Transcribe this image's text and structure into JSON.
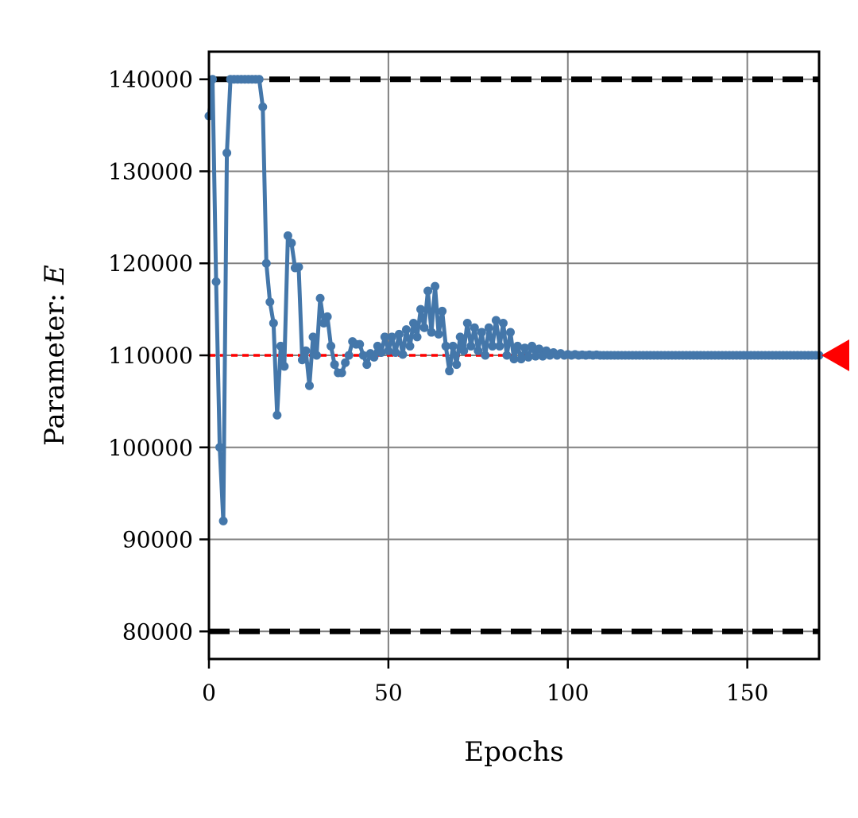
{
  "chart_data": {
    "type": "line",
    "xlabel": "Epochs",
    "ylabel_prefix": "Parameter: ",
    "ylabel_symbol": "E",
    "xlim": [
      0,
      170
    ],
    "ylim": [
      77000,
      143000
    ],
    "grid": true,
    "x_ticks": [
      0,
      50,
      100,
      150
    ],
    "y_ticks": [
      80000,
      90000,
      100000,
      110000,
      120000,
      130000,
      140000
    ],
    "reference_lines": [
      {
        "kind": "upper-bound",
        "value": 140000,
        "style": "dashed",
        "color": "#000000"
      },
      {
        "kind": "lower-bound",
        "value": 80000,
        "style": "dashed",
        "color": "#000000"
      },
      {
        "kind": "target",
        "value": 110000,
        "style": "dotted",
        "color": "#ff0000"
      }
    ],
    "target_marker": {
      "value": 110000,
      "shape": "left-pointing-triangle",
      "color": "#ff0000"
    },
    "series": [
      {
        "color": "#4477aa",
        "x": [
          0,
          1,
          2,
          3,
          4,
          5,
          6,
          7,
          8,
          9,
          10,
          11,
          12,
          13,
          14,
          15,
          16,
          17,
          18,
          19,
          20,
          21,
          22,
          23,
          24,
          25,
          26,
          27,
          28,
          29,
          30,
          31,
          32,
          33,
          34,
          35,
          36,
          37,
          38,
          39,
          40,
          41,
          42,
          43,
          44,
          45,
          46,
          47,
          48,
          49,
          50,
          51,
          52,
          53,
          54,
          55,
          56,
          57,
          58,
          59,
          60,
          61,
          62,
          63,
          64,
          65,
          66,
          67,
          68,
          69,
          70,
          71,
          72,
          73,
          74,
          75,
          76,
          77,
          78,
          79,
          80,
          81,
          82,
          83,
          84,
          85,
          86,
          87,
          88,
          89,
          90,
          91,
          92,
          93,
          94,
          95,
          96,
          97,
          98,
          99,
          100,
          101,
          102,
          103,
          104,
          105,
          106,
          107,
          108,
          109,
          110,
          111,
          112,
          113,
          114,
          115,
          116,
          117,
          118,
          119,
          120,
          121,
          122,
          123,
          124,
          125,
          126,
          127,
          128,
          129,
          130,
          131,
          132,
          133,
          134,
          135,
          136,
          137,
          138,
          139,
          140,
          141,
          142,
          143,
          144,
          145,
          146,
          147,
          148,
          149,
          150,
          151,
          152,
          153,
          154,
          155,
          156,
          157,
          158,
          159,
          160,
          161,
          162,
          163,
          164,
          165,
          166,
          167,
          168,
          169,
          170
        ],
        "y": [
          136000,
          140000,
          118000,
          100000,
          92000,
          132000,
          140000,
          140000,
          140000,
          140000,
          140000,
          140000,
          140000,
          140000,
          140000,
          137000,
          120000,
          115800,
          113500,
          103500,
          111000,
          108800,
          123000,
          122200,
          119500,
          119600,
          109500,
          110500,
          106700,
          112000,
          110000,
          116200,
          113500,
          114200,
          111000,
          109000,
          108100,
          108100,
          109200,
          110000,
          111500,
          111200,
          111200,
          110000,
          109000,
          110200,
          109800,
          111000,
          110300,
          112000,
          110500,
          112000,
          110300,
          112300,
          110100,
          112800,
          111000,
          113500,
          112000,
          115000,
          113000,
          117000,
          112500,
          117500,
          112300,
          114800,
          111000,
          108300,
          111000,
          109000,
          112000,
          110500,
          113500,
          111000,
          113000,
          110500,
          112500,
          110000,
          113000,
          111000,
          113800,
          111000,
          113500,
          110000,
          112500,
          109600,
          111000,
          109600,
          110800,
          109800,
          111000,
          109900,
          110700,
          109900,
          110500,
          110000,
          110300,
          110000,
          110200,
          110000,
          110100,
          110000,
          110100,
          110000,
          110050,
          110000,
          110050,
          110000,
          110050,
          110000,
          110000,
          110000,
          110000,
          110000,
          110000,
          110000,
          110000,
          110000,
          110000,
          110000,
          110000,
          110000,
          110000,
          110000,
          110000,
          110000,
          110000,
          110000,
          110000,
          110000,
          110000,
          110000,
          110000,
          110000,
          110000,
          110000,
          110000,
          110000,
          110000,
          110000,
          110000,
          110000,
          110000,
          110000,
          110000,
          110000,
          110000,
          110000,
          110000,
          110000,
          110000,
          110000,
          110000,
          110000,
          110000,
          110000,
          110000,
          110000,
          110000,
          110000,
          110000,
          110000,
          110000,
          110000,
          110000,
          110000,
          110000,
          110000,
          110000,
          110000,
          110000
        ]
      }
    ]
  }
}
